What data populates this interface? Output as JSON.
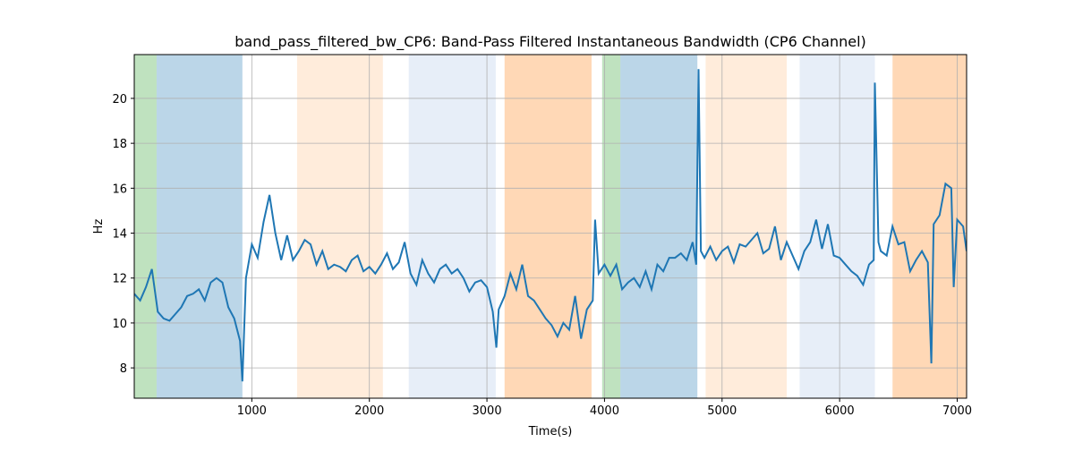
{
  "chart_data": {
    "type": "line",
    "title": "band_pass_filtered_bw_CP6: Band-Pass Filtered Instantaneous Bandwidth (CP6 Channel)",
    "x_label": "Time(s)",
    "y_label": "Hz",
    "xlim": [
      0,
      7080
    ],
    "ylim": [
      6.65,
      21.95
    ],
    "xticks": [
      1000,
      2000,
      3000,
      4000,
      5000,
      6000,
      7000
    ],
    "yticks": [
      8,
      10,
      12,
      14,
      16,
      18,
      20
    ],
    "grid": true,
    "spans": [
      {
        "start": 0,
        "end": 190,
        "color": "#2ca02c",
        "alpha": 0.3
      },
      {
        "start": 190,
        "end": 920,
        "color": "#1f77b4",
        "alpha": 0.3
      },
      {
        "start": 1385,
        "end": 2115,
        "color": "#ff7f0e",
        "alpha": 0.15
      },
      {
        "start": 2335,
        "end": 3075,
        "color": "#aec7e8",
        "alpha": 0.3
      },
      {
        "start": 3150,
        "end": 3890,
        "color": "#ff7f0e",
        "alpha": 0.3
      },
      {
        "start": 3980,
        "end": 4135,
        "color": "#2ca02c",
        "alpha": 0.3
      },
      {
        "start": 4135,
        "end": 4790,
        "color": "#1f77b4",
        "alpha": 0.3
      },
      {
        "start": 4860,
        "end": 5550,
        "color": "#ff7f0e",
        "alpha": 0.15
      },
      {
        "start": 5660,
        "end": 6300,
        "color": "#aec7e8",
        "alpha": 0.3
      },
      {
        "start": 6450,
        "end": 7080,
        "color": "#ff7f0e",
        "alpha": 0.3
      }
    ],
    "x": [
      0,
      50,
      100,
      150,
      200,
      250,
      300,
      350,
      400,
      450,
      500,
      550,
      600,
      650,
      700,
      750,
      800,
      850,
      900,
      920,
      950,
      1000,
      1050,
      1100,
      1150,
      1200,
      1250,
      1300,
      1350,
      1400,
      1450,
      1500,
      1550,
      1600,
      1650,
      1700,
      1750,
      1800,
      1850,
      1900,
      1950,
      2000,
      2050,
      2100,
      2150,
      2200,
      2250,
      2300,
      2350,
      2400,
      2450,
      2500,
      2550,
      2600,
      2650,
      2700,
      2750,
      2800,
      2850,
      2900,
      2950,
      3000,
      3050,
      3080,
      3100,
      3150,
      3200,
      3250,
      3300,
      3350,
      3400,
      3450,
      3500,
      3550,
      3600,
      3650,
      3700,
      3750,
      3800,
      3850,
      3900,
      3920,
      3950,
      4000,
      4050,
      4100,
      4150,
      4200,
      4250,
      4300,
      4350,
      4400,
      4450,
      4500,
      4550,
      4600,
      4650,
      4700,
      4750,
      4780,
      4800,
      4820,
      4850,
      4900,
      4950,
      5000,
      5050,
      5100,
      5150,
      5200,
      5250,
      5300,
      5350,
      5400,
      5450,
      5500,
      5550,
      5600,
      5650,
      5700,
      5750,
      5800,
      5850,
      5900,
      5950,
      6000,
      6050,
      6100,
      6150,
      6200,
      6250,
      6290,
      6300,
      6330,
      6350,
      6400,
      6450,
      6500,
      6550,
      6600,
      6650,
      6700,
      6750,
      6780,
      6800,
      6850,
      6900,
      6950,
      6970,
      7000,
      7050,
      7080
    ],
    "series": [
      {
        "name": "band_pass_filtered_bw_CP6",
        "color": "#1f77b4",
        "values": [
          11.3,
          11.0,
          11.6,
          12.4,
          10.5,
          10.2,
          10.1,
          10.4,
          10.7,
          11.2,
          11.3,
          11.5,
          11.0,
          11.8,
          12.0,
          11.8,
          10.7,
          10.2,
          9.2,
          7.4,
          12.0,
          13.5,
          12.9,
          14.5,
          15.7,
          14.0,
          12.8,
          13.9,
          12.8,
          13.2,
          13.7,
          13.5,
          12.6,
          13.2,
          12.4,
          12.6,
          12.5,
          12.3,
          12.8,
          13.0,
          12.3,
          12.5,
          12.2,
          12.6,
          13.1,
          12.4,
          12.7,
          13.6,
          12.2,
          11.7,
          12.8,
          12.2,
          11.8,
          12.4,
          12.6,
          12.2,
          12.4,
          12.0,
          11.4,
          11.8,
          11.9,
          11.6,
          10.5,
          8.9,
          10.6,
          11.2,
          12.2,
          11.5,
          12.6,
          11.2,
          11.0,
          10.6,
          10.2,
          9.9,
          9.4,
          10.0,
          9.7,
          11.2,
          9.3,
          10.6,
          11.0,
          14.6,
          12.2,
          12.6,
          12.1,
          12.6,
          11.5,
          11.8,
          12.0,
          11.6,
          12.3,
          11.5,
          12.6,
          12.3,
          12.9,
          12.9,
          13.1,
          12.8,
          13.6,
          12.6,
          21.3,
          13.2,
          12.9,
          13.4,
          12.8,
          13.2,
          13.4,
          12.7,
          13.5,
          13.4,
          13.7,
          14.0,
          13.1,
          13.3,
          14.3,
          12.8,
          13.6,
          13.0,
          12.4,
          13.2,
          13.6,
          14.6,
          13.3,
          14.4,
          13.0,
          12.9,
          12.6,
          12.3,
          12.1,
          11.7,
          12.6,
          12.8,
          20.7,
          13.6,
          13.2,
          13.0,
          14.3,
          13.5,
          13.6,
          12.3,
          12.8,
          13.2,
          12.7,
          8.2,
          14.4,
          14.8,
          16.2,
          16.0,
          11.6,
          14.6,
          14.3,
          13.2
        ]
      }
    ]
  }
}
